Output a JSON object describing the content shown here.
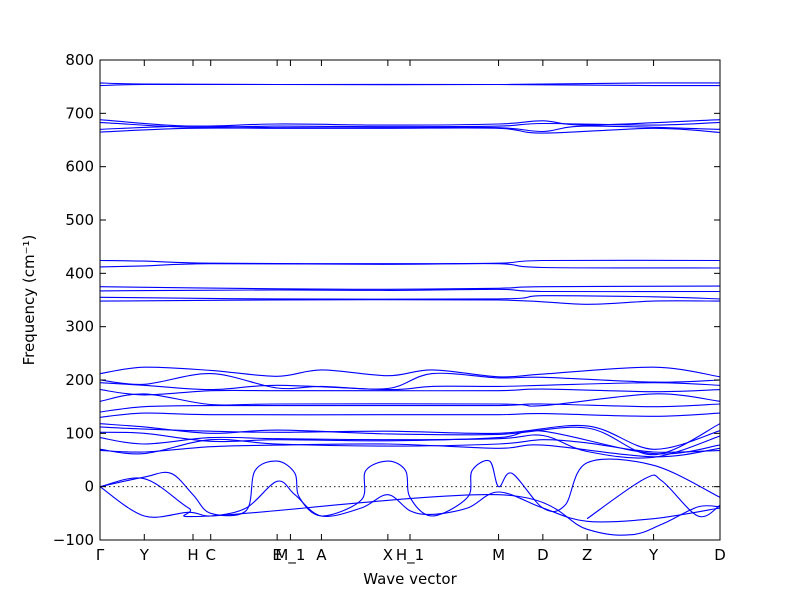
{
  "chart_data": {
    "type": "line",
    "xlabel": "Wave vector",
    "ylabel": "Frequency (cm⁻¹)",
    "ylim": [
      -100,
      800
    ],
    "yticks": [
      -100,
      0,
      100,
      200,
      300,
      400,
      500,
      600,
      700,
      800
    ],
    "xlim": [
      0,
      14
    ],
    "xticks": [
      {
        "label": "Γ",
        "x": 0
      },
      {
        "label": "Y",
        "x": 1
      },
      {
        "label": "H",
        "x": 2.1
      },
      {
        "label": "C",
        "x": 2.5
      },
      {
        "label": "E",
        "x": 4
      },
      {
        "label": "M_1",
        "x": 4.3
      },
      {
        "label": "A",
        "x": 5
      },
      {
        "label": "X",
        "x": 6.5
      },
      {
        "label": "H_1",
        "x": 7
      },
      {
        "label": "M",
        "x": 9
      },
      {
        "label": "D",
        "x": 10
      },
      {
        "label": "Z",
        "x": 11
      },
      {
        "label": "Y",
        "x": 12.5
      },
      {
        "label": "D",
        "x": 14
      }
    ],
    "zero_line": true,
    "grid": false,
    "line_color": "#0000ff",
    "series": [
      {
        "points": [
          [
            0,
            757
          ],
          [
            1,
            755
          ],
          [
            4,
            754
          ],
          [
            9,
            754
          ],
          [
            12.5,
            757
          ],
          [
            14,
            757
          ]
        ]
      },
      {
        "points": [
          [
            0,
            752
          ],
          [
            1,
            754
          ],
          [
            4,
            754
          ],
          [
            9,
            754
          ],
          [
            12.5,
            752
          ],
          [
            14,
            752
          ]
        ]
      },
      {
        "points": [
          [
            0,
            688
          ],
          [
            2,
            676
          ],
          [
            4,
            680
          ],
          [
            6.5,
            678
          ],
          [
            9,
            680
          ],
          [
            10,
            686
          ],
          [
            11,
            678
          ],
          [
            14,
            688
          ]
        ]
      },
      {
        "points": [
          [
            0,
            683
          ],
          [
            2,
            674
          ],
          [
            4,
            676
          ],
          [
            6.5,
            675
          ],
          [
            9,
            676
          ],
          [
            10,
            681
          ],
          [
            12.5,
            678
          ],
          [
            14,
            683
          ]
        ]
      },
      {
        "points": [
          [
            0,
            670
          ],
          [
            2,
            676
          ],
          [
            4,
            673
          ],
          [
            6.5,
            673
          ],
          [
            9,
            673
          ],
          [
            10,
            666
          ],
          [
            11,
            676
          ],
          [
            14,
            670
          ]
        ]
      },
      {
        "points": [
          [
            0,
            665
          ],
          [
            2,
            672
          ],
          [
            4,
            672
          ],
          [
            6.5,
            672
          ],
          [
            9,
            672
          ],
          [
            10,
            663
          ],
          [
            12.5,
            672
          ],
          [
            14,
            664
          ]
        ]
      },
      {
        "points": [
          [
            0,
            424
          ],
          [
            1,
            423
          ],
          [
            2.5,
            419
          ],
          [
            6.5,
            418
          ],
          [
            9,
            419
          ],
          [
            10,
            424
          ],
          [
            14,
            424
          ]
        ]
      },
      {
        "points": [
          [
            0,
            412
          ],
          [
            1,
            414
          ],
          [
            2.5,
            418
          ],
          [
            6.5,
            417
          ],
          [
            9,
            418
          ],
          [
            10,
            411
          ],
          [
            14,
            410
          ]
        ]
      },
      {
        "points": [
          [
            0,
            375
          ],
          [
            4,
            371
          ],
          [
            6.5,
            370
          ],
          [
            9,
            372
          ],
          [
            10,
            375
          ],
          [
            14,
            376
          ]
        ]
      },
      {
        "points": [
          [
            0,
            367
          ],
          [
            4,
            369
          ],
          [
            6.5,
            368
          ],
          [
            9,
            370
          ],
          [
            10,
            366
          ],
          [
            14,
            366
          ]
        ]
      },
      {
        "points": [
          [
            0,
            355
          ],
          [
            4,
            352
          ],
          [
            9,
            352
          ],
          [
            10,
            358
          ],
          [
            12.5,
            356
          ],
          [
            14,
            352
          ]
        ]
      },
      {
        "points": [
          [
            0,
            348
          ],
          [
            4,
            350
          ],
          [
            9,
            350
          ],
          [
            11,
            342
          ],
          [
            12.5,
            348
          ],
          [
            14,
            348
          ]
        ]
      },
      {
        "points": [
          [
            0,
            212
          ],
          [
            1,
            224
          ],
          [
            2.5,
            218
          ],
          [
            4,
            207
          ],
          [
            5,
            219
          ],
          [
            6.5,
            208
          ],
          [
            7.5,
            219
          ],
          [
            9,
            206
          ],
          [
            10,
            211
          ],
          [
            12.5,
            224
          ],
          [
            14,
            206
          ]
        ]
      },
      {
        "points": [
          [
            0,
            200
          ],
          [
            1,
            192
          ],
          [
            2.5,
            212
          ],
          [
            4,
            185
          ],
          [
            5,
            188
          ],
          [
            6.5,
            184
          ],
          [
            7.5,
            212
          ],
          [
            9,
            204
          ],
          [
            10,
            205
          ],
          [
            12.5,
            196
          ],
          [
            14,
            200
          ]
        ]
      },
      {
        "points": [
          [
            0,
            195
          ],
          [
            1,
            190
          ],
          [
            2.5,
            182
          ],
          [
            4,
            190
          ],
          [
            6.5,
            182
          ],
          [
            7.5,
            188
          ],
          [
            9,
            188
          ],
          [
            10,
            190
          ],
          [
            12.5,
            195
          ],
          [
            14,
            190
          ]
        ]
      },
      {
        "points": [
          [
            0,
            182
          ],
          [
            1,
            172
          ],
          [
            2.5,
            180
          ],
          [
            4,
            180
          ],
          [
            6.5,
            180
          ],
          [
            9,
            180
          ],
          [
            10,
            183
          ],
          [
            12.5,
            178
          ],
          [
            14,
            182
          ]
        ]
      },
      {
        "points": [
          [
            0,
            160
          ],
          [
            1,
            174
          ],
          [
            2.5,
            154
          ],
          [
            4,
            155
          ],
          [
            9,
            155
          ],
          [
            10,
            152
          ],
          [
            12.5,
            174
          ],
          [
            14,
            160
          ]
        ]
      },
      {
        "points": [
          [
            0,
            140
          ],
          [
            1,
            150
          ],
          [
            2.5,
            152
          ],
          [
            6.5,
            152
          ],
          [
            9,
            152
          ],
          [
            10,
            155
          ],
          [
            12.5,
            150
          ],
          [
            14,
            155
          ]
        ]
      },
      {
        "points": [
          [
            0,
            130
          ],
          [
            1,
            138
          ],
          [
            2.5,
            135
          ],
          [
            6.5,
            135
          ],
          [
            9,
            135
          ],
          [
            10,
            137
          ],
          [
            12.5,
            132
          ],
          [
            14,
            138
          ]
        ]
      },
      {
        "points": [
          [
            0,
            118
          ],
          [
            1,
            112
          ],
          [
            2.5,
            100
          ],
          [
            4,
            106
          ],
          [
            6.5,
            99
          ],
          [
            9,
            98
          ],
          [
            11,
            110
          ],
          [
            12.5,
            60
          ],
          [
            14,
            118
          ]
        ]
      },
      {
        "points": [
          [
            0,
            112
          ],
          [
            1,
            108
          ],
          [
            2.5,
            104
          ],
          [
            4,
            102
          ],
          [
            6.5,
            104
          ],
          [
            9,
            100
          ],
          [
            11,
            114
          ],
          [
            12.5,
            70
          ],
          [
            14,
            105
          ]
        ]
      },
      {
        "points": [
          [
            0,
            102
          ],
          [
            1,
            100
          ],
          [
            2.5,
            85
          ],
          [
            4,
            88
          ],
          [
            6.5,
            86
          ],
          [
            9,
            92
          ],
          [
            10,
            104
          ],
          [
            12.5,
            62
          ],
          [
            14,
            78
          ]
        ]
      },
      {
        "points": [
          [
            0,
            92
          ],
          [
            1,
            80
          ],
          [
            2.5,
            92
          ],
          [
            4,
            90
          ],
          [
            6.5,
            88
          ],
          [
            9,
            90
          ],
          [
            10,
            96
          ],
          [
            11,
            66
          ],
          [
            12.5,
            55
          ],
          [
            14,
            95
          ]
        ]
      },
      {
        "points": [
          [
            0,
            70
          ],
          [
            1,
            62
          ],
          [
            2.5,
            88
          ],
          [
            4,
            80
          ],
          [
            6.5,
            76
          ],
          [
            9,
            80
          ],
          [
            10,
            88
          ],
          [
            11,
            82
          ],
          [
            12.5,
            65
          ],
          [
            14,
            68
          ]
        ]
      },
      {
        "points": [
          [
            0,
            68
          ],
          [
            1,
            65
          ],
          [
            2.5,
            75
          ],
          [
            4,
            78
          ],
          [
            6.5,
            80
          ],
          [
            9,
            72
          ],
          [
            10,
            78
          ],
          [
            12.5,
            56
          ],
          [
            14,
            72
          ]
        ]
      },
      {
        "points": [
          [
            0,
            0
          ],
          [
            1,
            18
          ],
          [
            1.6,
            25
          ],
          [
            2.1,
            -15
          ],
          [
            2.5,
            -50
          ],
          [
            3.3,
            -45
          ],
          [
            3.5,
            30
          ],
          [
            4,
            48
          ],
          [
            4.4,
            25
          ],
          [
            4.5,
            -20
          ],
          [
            5,
            -55
          ],
          [
            5.9,
            -25
          ],
          [
            6,
            30
          ],
          [
            6.5,
            48
          ],
          [
            6.9,
            30
          ],
          [
            7,
            -20
          ],
          [
            7.5,
            -55
          ],
          [
            8.3,
            -20
          ],
          [
            8.4,
            30
          ],
          [
            8.8,
            48
          ],
          [
            9,
            0
          ],
          [
            9.3,
            25
          ],
          [
            10,
            -40
          ],
          [
            10.5,
            -35
          ],
          [
            11,
            45
          ],
          [
            12.5,
            40
          ],
          [
            14,
            -20
          ]
        ]
      },
      {
        "points": [
          [
            0,
            0
          ],
          [
            1,
            -55
          ],
          [
            2,
            -48
          ],
          [
            2.5,
            -55
          ],
          [
            3.3,
            -40
          ],
          [
            4,
            10
          ],
          [
            4.4,
            -15
          ],
          [
            5,
            -55
          ],
          [
            5.9,
            -40
          ],
          [
            6.5,
            -15
          ],
          [
            7,
            -45
          ],
          [
            7.5,
            -52
          ],
          [
            8.3,
            -40
          ],
          [
            9,
            -10
          ],
          [
            10,
            -40
          ],
          [
            11,
            -65
          ],
          [
            12.5,
            -60
          ],
          [
            14,
            -40
          ]
        ]
      },
      {
        "points": [
          [
            0,
            0
          ],
          [
            1,
            15
          ],
          [
            2,
            -40
          ],
          [
            2.5,
            -55
          ],
          [
            9,
            -15
          ],
          [
            11,
            -80
          ],
          [
            12,
            -90
          ],
          [
            12.7,
            -70
          ],
          [
            13.5,
            -38
          ],
          [
            14,
            -38
          ]
        ]
      },
      {
        "points": [
          [
            11,
            -60
          ],
          [
            12.3,
            15
          ],
          [
            12.7,
            10
          ],
          [
            13.5,
            -55
          ],
          [
            14,
            -35
          ]
        ]
      }
    ]
  }
}
